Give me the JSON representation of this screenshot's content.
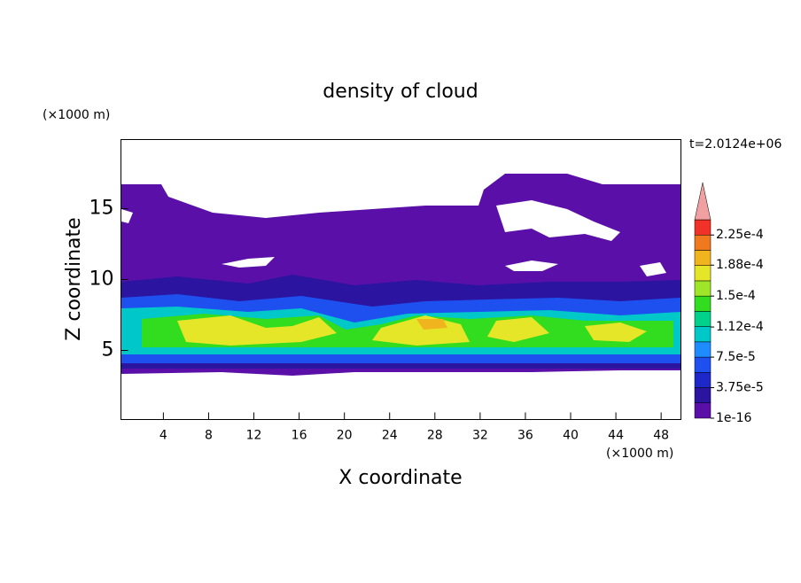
{
  "chart_data": {
    "type": "contour",
    "title": "density of cloud",
    "time_label": "t=2.0124e+06",
    "x_label": "X coordinate",
    "y_label": "Z coordinate",
    "x_unit": "(×1000 m)",
    "y_unit": "(×1000 m)",
    "xlim": [
      0.25,
      49.75
    ],
    "xticks": [
      4,
      8,
      12,
      16,
      20,
      24,
      28,
      32,
      36,
      40,
      44,
      48
    ],
    "ylim": [
      0.125,
      19.875
    ],
    "yticks": [
      5,
      10,
      15
    ],
    "colorbar": {
      "lim": [
        1e-16,
        0.00024375
      ],
      "ticks": [
        {
          "value": 1e-16,
          "label": "1e-16"
        },
        {
          "value": 3.75e-05,
          "label": "3.75e-5"
        },
        {
          "value": 7.5e-05,
          "label": "7.5e-5"
        },
        {
          "value": 0.000112,
          "label": "1.12e-4"
        },
        {
          "value": 0.00015,
          "label": "1.5e-4"
        },
        {
          "value": 0.000188,
          "label": "1.88e-4"
        },
        {
          "value": 0.000225,
          "label": "2.25e-4"
        }
      ],
      "colors": [
        "#5a10a8",
        "#2a14a0",
        "#1e28c8",
        "#1e50f0",
        "#1e8cff",
        "#00c8c8",
        "#00d28c",
        "#32dc1e",
        "#a0e628",
        "#e6e628",
        "#f0b41e",
        "#f0781e",
        "#f03228"
      ],
      "over_color": "#f0a0a0"
    }
  }
}
